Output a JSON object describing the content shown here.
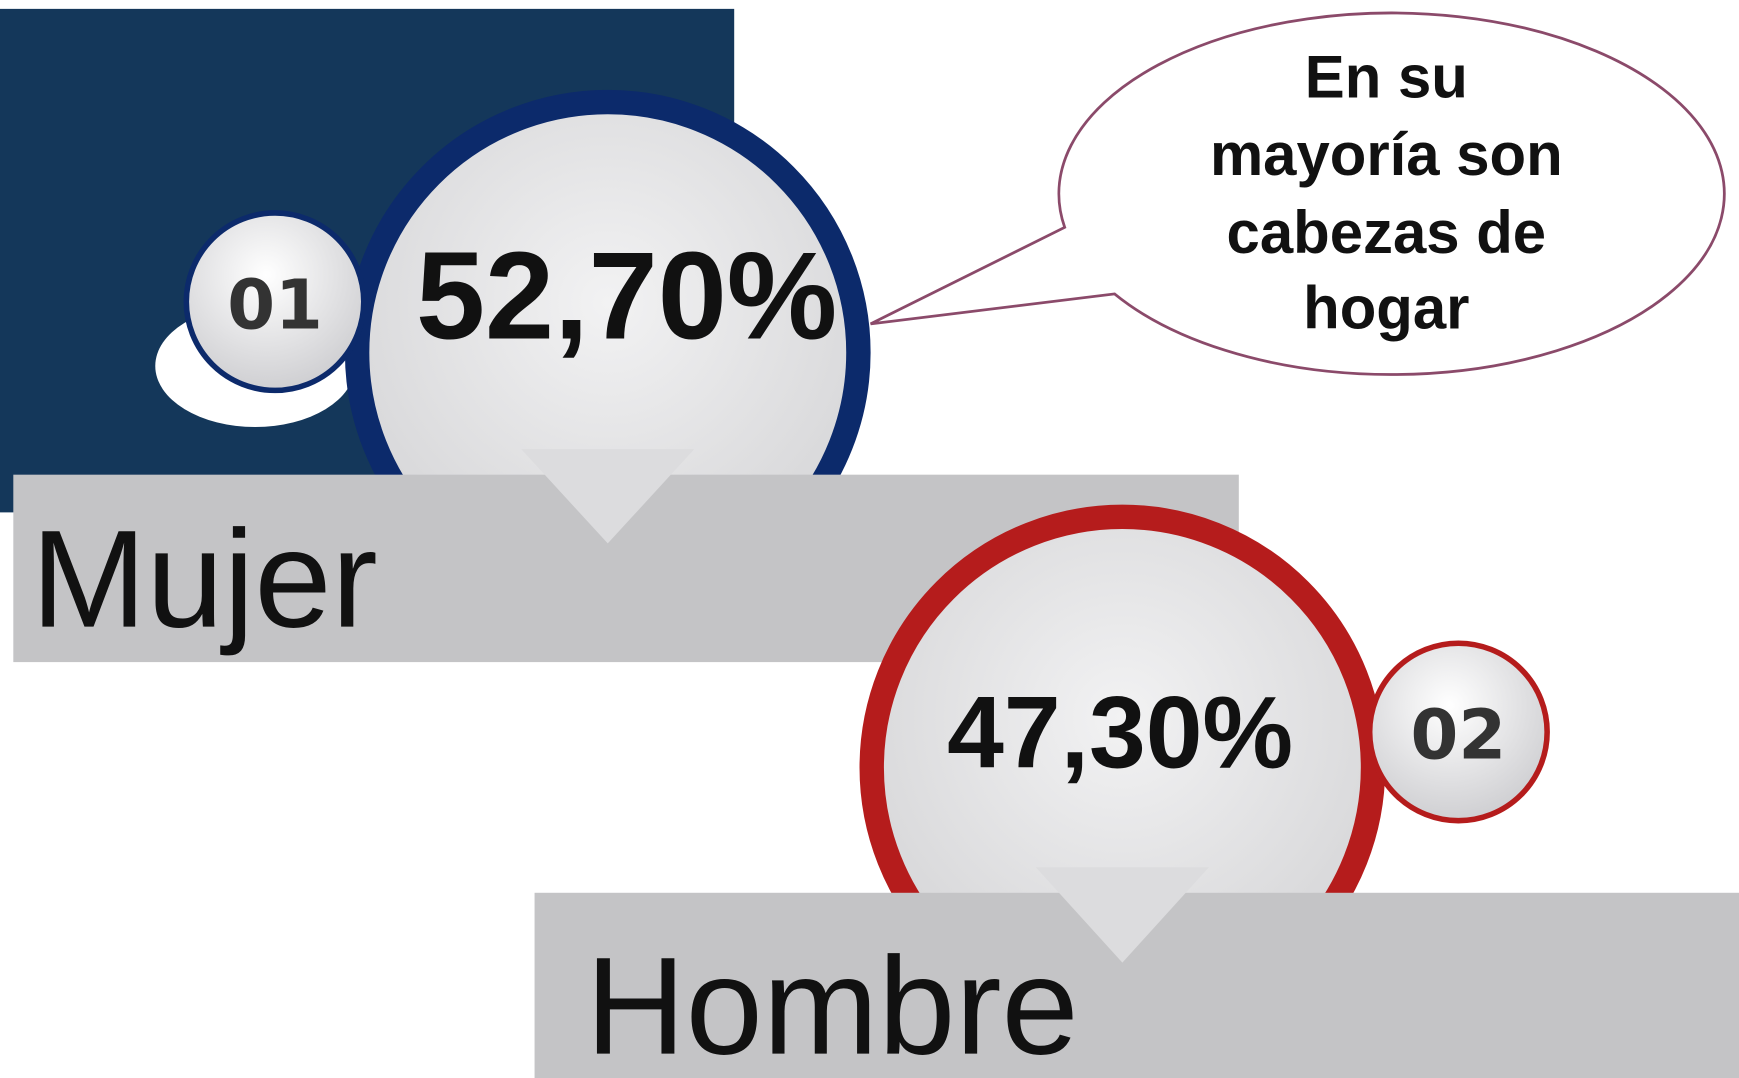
{
  "items": [
    {
      "number": "01",
      "value": "52,70%",
      "label": "Mujer"
    },
    {
      "number": "02",
      "value": "47,30%",
      "label": "Hombre"
    }
  ],
  "callout": {
    "lines": [
      "En su",
      "mayoría son",
      "cabezas de",
      "hogar"
    ]
  }
}
